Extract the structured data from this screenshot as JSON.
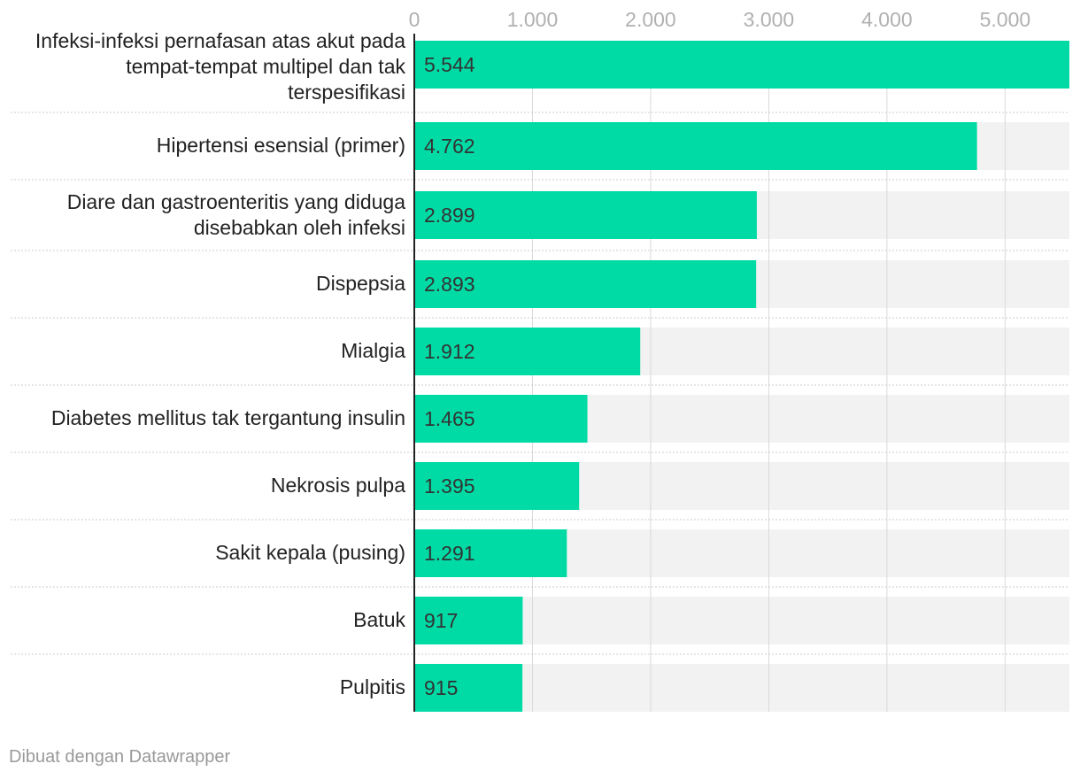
{
  "chart_data": {
    "type": "bar",
    "orientation": "horizontal",
    "title": "",
    "xlabel": "",
    "ylabel": "",
    "xlim": [
      0,
      5544
    ],
    "ticks": [
      {
        "value": 0,
        "label": "0"
      },
      {
        "value": 1000,
        "label": "1.000"
      },
      {
        "value": 2000,
        "label": "2.000"
      },
      {
        "value": 3000,
        "label": "3.000"
      },
      {
        "value": 4000,
        "label": "4.000"
      },
      {
        "value": 5000,
        "label": "5.000"
      }
    ],
    "categories": [
      [
        "Infeksi-infeksi pernafasan atas akut pada",
        "tempat-tempat multipel dan tak",
        "terspesifikasi"
      ],
      [
        "Hipertensi esensial (primer)"
      ],
      [
        "Diare dan gastroenteritis yang diduga",
        "disebabkan oleh infeksi"
      ],
      [
        "Dispepsia"
      ],
      [
        "Mialgia"
      ],
      [
        "Diabetes mellitus tak tergantung insulin"
      ],
      [
        "Nekrosis pulpa"
      ],
      [
        "Sakit kepala (pusing)"
      ],
      [
        "Batuk"
      ],
      [
        "Pulpitis"
      ]
    ],
    "values": [
      5544,
      4762,
      2899,
      2893,
      1912,
      1465,
      1395,
      1291,
      917,
      915
    ],
    "value_labels": [
      "5.544",
      "4.762",
      "2.899",
      "2.893",
      "1.912",
      "1.465",
      "1.395",
      "1.291",
      "917",
      "915"
    ],
    "grid": true,
    "colors": {
      "bar": "#00dba6",
      "background_bar": "#f2f2f2",
      "gridline": "#d9d9d9",
      "separator": "#cccccc",
      "axis": "#222222"
    }
  },
  "footer": {
    "credit": "Dibuat dengan Datawrapper"
  }
}
